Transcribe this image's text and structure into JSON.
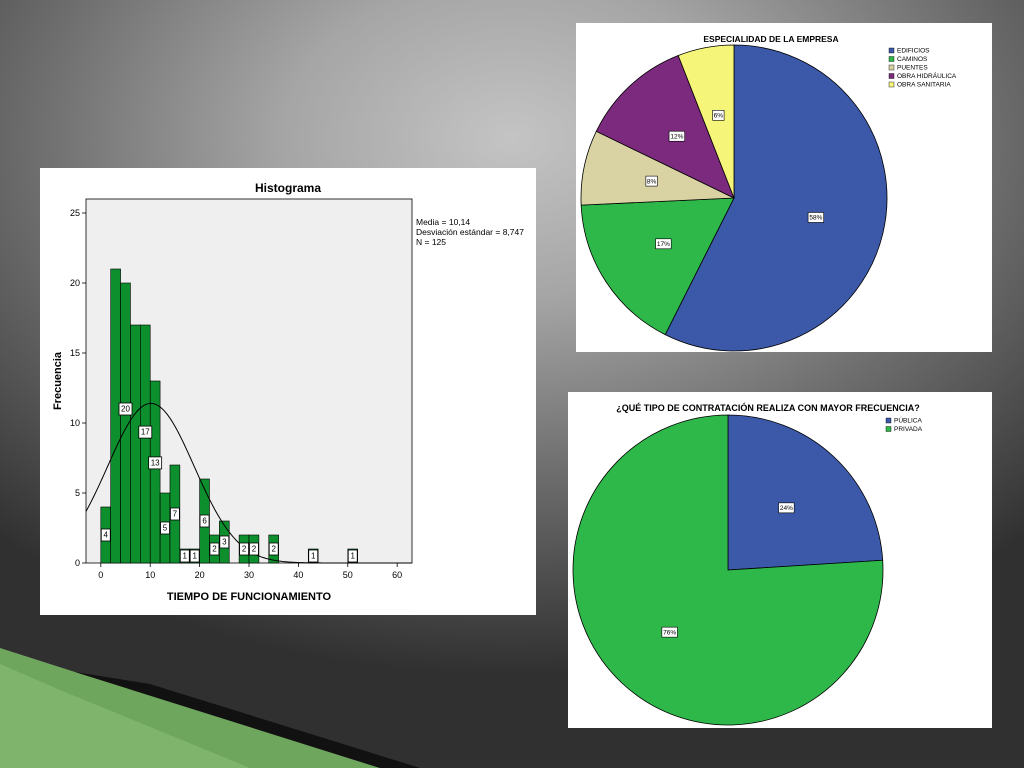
{
  "slide": {
    "background_color": "#8a8a8a",
    "decor_colors": {
      "green": "#6fa65e",
      "dark": "#111111"
    }
  },
  "histogram": {
    "title": "Histograma",
    "xlabel": "TIEMPO DE FUNCIONAMIENTO",
    "ylabel": "Frecuencia",
    "stats": [
      "Media = 10,14",
      "Desviación estándar = 8,747",
      "N = 125"
    ],
    "mean": 10.14,
    "std": 8.747,
    "n": 125
  },
  "pie1": {
    "title": "ESPECIALIDAD DE LA EMPRESA"
  },
  "pie2": {
    "title": "¿QUÉ TIPO DE CONTRATACIÓN REALIZA CON MAYOR FRECUENCIA?"
  },
  "chart_data": [
    {
      "type": "bar",
      "title": "Histograma",
      "xlabel": "TIEMPO DE FUNCIONAMIENTO",
      "ylabel": "Frecuencia",
      "xlim": [
        -3,
        63
      ],
      "ylim": [
        0,
        26
      ],
      "xticks": [
        0,
        10,
        20,
        30,
        40,
        50,
        60
      ],
      "yticks": [
        0,
        5,
        10,
        15,
        20,
        25
      ],
      "bin_width": 2,
      "bins": [
        {
          "x0": 0,
          "value": 4,
          "label": "4"
        },
        {
          "x0": 2,
          "value": 21,
          "label": ""
        },
        {
          "x0": 4,
          "value": 20,
          "label": "20"
        },
        {
          "x0": 6,
          "value": 17,
          "label": ""
        },
        {
          "x0": 8,
          "value": 17,
          "label": "17"
        },
        {
          "x0": 10,
          "value": 13,
          "label": "13"
        },
        {
          "x0": 12,
          "value": 5,
          "label": "5"
        },
        {
          "x0": 14,
          "value": 7,
          "label": "7"
        },
        {
          "x0": 16,
          "value": 1,
          "label": "1"
        },
        {
          "x0": 18,
          "value": 1,
          "label": "1"
        },
        {
          "x0": 20,
          "value": 6,
          "label": "6"
        },
        {
          "x0": 22,
          "value": 2,
          "label": "2"
        },
        {
          "x0": 24,
          "value": 3,
          "label": "3"
        },
        {
          "x0": 28,
          "value": 2,
          "label": "2"
        },
        {
          "x0": 30,
          "value": 2,
          "label": "2"
        },
        {
          "x0": 34,
          "value": 2,
          "label": "2"
        },
        {
          "x0": 42,
          "value": 1,
          "label": "1"
        },
        {
          "x0": 50,
          "value": 1,
          "label": "1"
        }
      ],
      "normal_curve": {
        "mean": 10.14,
        "std": 8.747,
        "n": 125
      },
      "grid": false
    },
    {
      "type": "pie",
      "title": "ESPECIALIDAD DE LA EMPRESA",
      "legend_position": "top-right",
      "slices": [
        {
          "name": "EDIFICIOS",
          "value": 58,
          "label": "58%",
          "color": "#3c58a8"
        },
        {
          "name": "CAMINOS",
          "value": 17,
          "label": "17%",
          "color": "#2fb84a"
        },
        {
          "name": "PUENTES",
          "value": 8,
          "label": "8%",
          "color": "#d9d3a4"
        },
        {
          "name": "OBRA HIDRÁULICA",
          "value": 12,
          "label": "12%",
          "color": "#7c2a7e"
        },
        {
          "name": "OBRA SANITARIA",
          "value": 6,
          "label": "6%",
          "color": "#f5f57a"
        }
      ]
    },
    {
      "type": "pie",
      "title": "¿QUÉ TIPO DE CONTRATACIÓN REALIZA CON MAYOR FRECUENCIA?",
      "legend_position": "top-right",
      "slices": [
        {
          "name": "PÚBLICA",
          "value": 24,
          "label": "24%",
          "color": "#3c58a8"
        },
        {
          "name": "PRIVADA",
          "value": 76,
          "label": "76%",
          "color": "#2fb84a"
        }
      ]
    }
  ]
}
